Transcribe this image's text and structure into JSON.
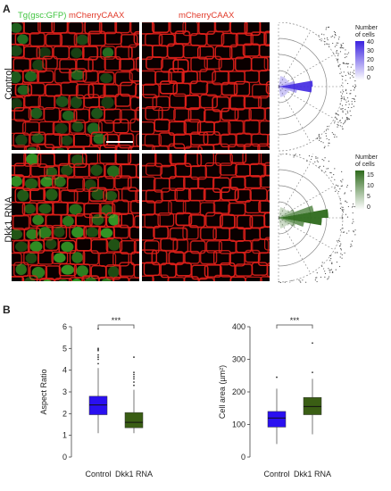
{
  "panel_a": {
    "letter": "A",
    "headers": {
      "merged_green": "Tg(gsc:GFP)",
      "merged_red": "mCherryCAAX",
      "single_red": "mCherryCAAX"
    },
    "rows": [
      {
        "label": "Control",
        "colorbar": {
          "title_line1": "Number",
          "title_line2": "of cells",
          "ticks": [
            "40",
            "30",
            "20",
            "10",
            "0"
          ],
          "max": 45,
          "color": "#3b22e0"
        }
      },
      {
        "label": "Dkk1 RNA",
        "colorbar": {
          "title_line1": "Number",
          "title_line2": "of cells",
          "ticks": [
            "15",
            "10",
            "5",
            "0"
          ],
          "max": 18,
          "color": "#2e6b1c"
        }
      }
    ]
  },
  "panel_b": {
    "letter": "B"
  },
  "colors": {
    "control": "#2a10f0",
    "dkk1": "#3a5e14",
    "green": "#3ec43e",
    "red": "#e23a2a"
  },
  "chart_data": [
    {
      "type": "box",
      "title": "",
      "xlabel": "",
      "ylabel": "Aspect Ratio",
      "ylim": [
        0,
        6
      ],
      "yticks": [
        0,
        1,
        2,
        3,
        4,
        5,
        6
      ],
      "categories": [
        "Control",
        "Dkk1 RNA"
      ],
      "significance": "***",
      "boxes": [
        {
          "name": "Control",
          "whisker_low": 1.1,
          "q1": 1.95,
          "median": 2.4,
          "q3": 2.8,
          "whisker_high": 4.1,
          "outliers": [
            4.3,
            4.5,
            4.6,
            4.7,
            4.9,
            4.95,
            5.0,
            5.9
          ],
          "color": "#2a10f0"
        },
        {
          "name": "Dkk1 RNA",
          "whisker_low": 1.1,
          "q1": 1.35,
          "median": 1.6,
          "q3": 2.05,
          "whisker_high": 3.1,
          "outliers": [
            3.3,
            3.45,
            3.6,
            3.7,
            3.8,
            3.9,
            4.6
          ],
          "color": "#3a5e14"
        }
      ]
    },
    {
      "type": "box",
      "title": "",
      "xlabel": "",
      "ylabel": "Cell area (µm²)",
      "ylim": [
        0,
        400
      ],
      "yticks": [
        0,
        100,
        200,
        300,
        400
      ],
      "categories": [
        "Control",
        "Dkk1 RNA"
      ],
      "significance": "***",
      "boxes": [
        {
          "name": "Control",
          "whisker_low": 40,
          "q1": 92,
          "median": 120,
          "q3": 140,
          "whisker_high": 210,
          "outliers": [
            245
          ],
          "color": "#2a10f0"
        },
        {
          "name": "Dkk1 RNA",
          "whisker_low": 70,
          "q1": 130,
          "median": 155,
          "q3": 183,
          "whisker_high": 240,
          "outliers": [
            260,
            350
          ],
          "color": "#3a5e14"
        }
      ]
    }
  ]
}
